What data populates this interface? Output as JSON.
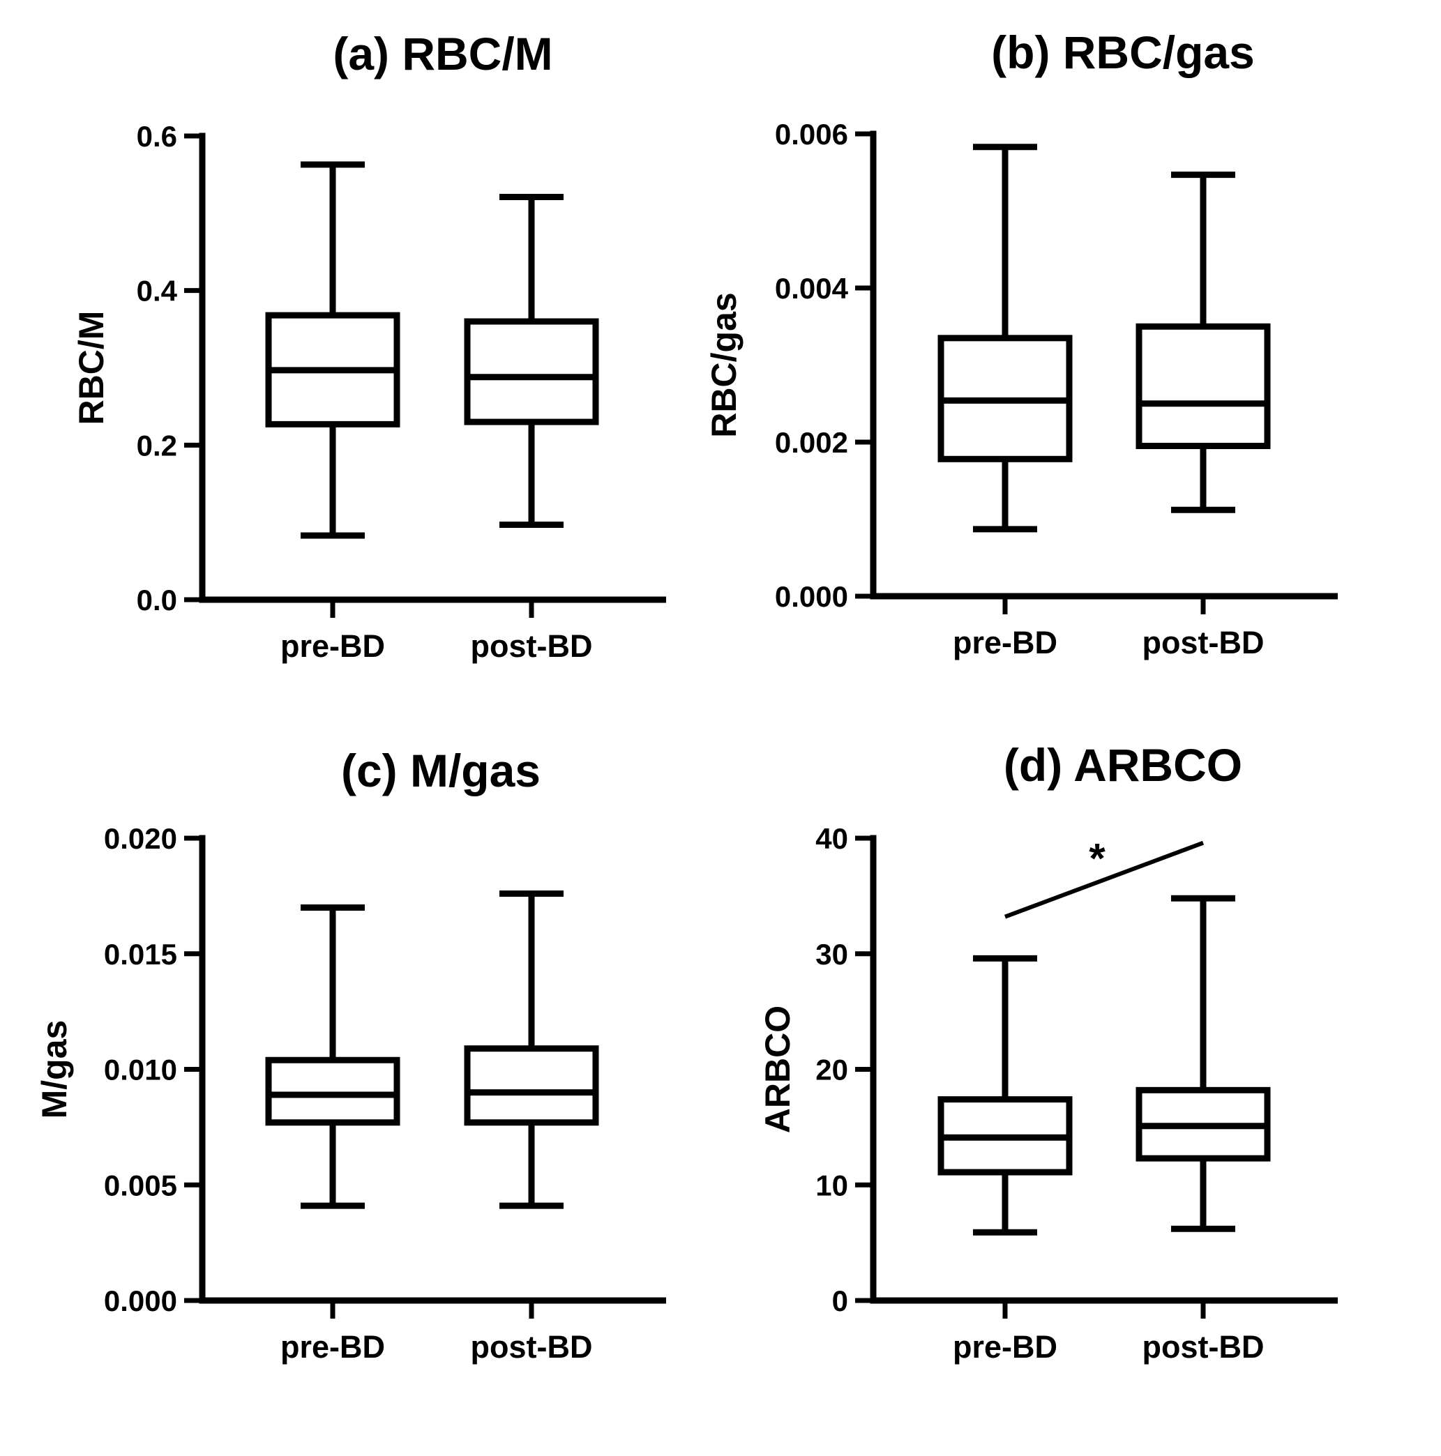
{
  "chart_data": [
    {
      "type": "box",
      "title": "(a) RBC/M",
      "ylabel": "RBC/M",
      "categories": [
        "pre-BD",
        "post-BD"
      ],
      "ylim": [
        0,
        0.6
      ],
      "yticks": [
        "0.0",
        "0.2",
        "0.4",
        "0.6"
      ],
      "boxes": [
        {
          "category": "pre-BD",
          "min": 0.083,
          "q1": 0.227,
          "median": 0.297,
          "q3": 0.368,
          "max": 0.563
        },
        {
          "category": "post-BD",
          "min": 0.097,
          "q1": 0.23,
          "median": 0.288,
          "q3": 0.36,
          "max": 0.521
        }
      ]
    },
    {
      "type": "box",
      "title": "(b) RBC/gas",
      "ylabel": "RBC/gas",
      "categories": [
        "pre-BD",
        "post-BD"
      ],
      "ylim": [
        0,
        0.006
      ],
      "yticks": [
        "0.000",
        "0.002",
        "0.004",
        "0.006"
      ],
      "boxes": [
        {
          "category": "pre-BD",
          "min": 0.00087,
          "q1": 0.00178,
          "median": 0.00254,
          "q3": 0.00335,
          "max": 0.00583
        },
        {
          "category": "post-BD",
          "min": 0.00112,
          "q1": 0.00195,
          "median": 0.0025,
          "q3": 0.0035,
          "max": 0.00547
        }
      ]
    },
    {
      "type": "box",
      "title": "(c) M/gas",
      "ylabel": "M/gas",
      "categories": [
        "pre-BD",
        "post-BD"
      ],
      "ylim": [
        0,
        0.02
      ],
      "yticks": [
        "0.000",
        "0.005",
        "0.010",
        "0.015",
        "0.020"
      ],
      "boxes": [
        {
          "category": "pre-BD",
          "min": 0.0041,
          "q1": 0.0077,
          "median": 0.0089,
          "q3": 0.0104,
          "max": 0.017
        },
        {
          "category": "post-BD",
          "min": 0.0041,
          "q1": 0.0077,
          "median": 0.009,
          "q3": 0.0109,
          "max": 0.0176
        }
      ]
    },
    {
      "type": "box",
      "title": "(d) ARBCO",
      "ylabel": "ARBCO",
      "categories": [
        "pre-BD",
        "post-BD"
      ],
      "ylim": [
        0,
        40
      ],
      "yticks": [
        "0",
        "10",
        "20",
        "30",
        "40"
      ],
      "boxes": [
        {
          "category": "pre-BD",
          "min": 5.9,
          "q1": 11.1,
          "median": 14.1,
          "q3": 17.4,
          "max": 29.6
        },
        {
          "category": "post-BD",
          "min": 6.2,
          "q1": 12.3,
          "median": 15.1,
          "q3": 18.2,
          "max": 34.8
        }
      ],
      "annotations": [
        {
          "text": "*",
          "type": "significance",
          "from": "pre-BD",
          "to": "post-BD",
          "y_start": 33.2,
          "y_end": 39.6
        }
      ]
    }
  ]
}
